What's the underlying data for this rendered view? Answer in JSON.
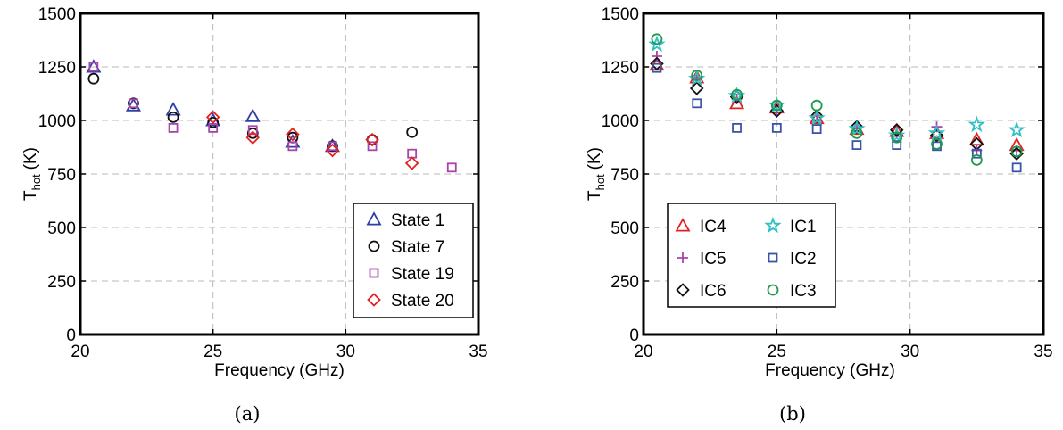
{
  "chart_data": [
    {
      "type": "scatter",
      "caption": "(a)",
      "xlabel": "Frequency (GHz)",
      "ylabel": "T",
      "ylabel_sub": "hot",
      "ylabel_unit": "(K)",
      "xlim": [
        20,
        35
      ],
      "ylim": [
        0,
        1500
      ],
      "xticks": [
        "20",
        "25",
        "30",
        "35"
      ],
      "yticks": [
        "0",
        "250",
        "500",
        "750",
        "1000",
        "1250",
        "1500"
      ],
      "grid": true,
      "legend_position": "lower-right",
      "series": [
        {
          "name": "State 1",
          "marker": "triangle",
          "color": "#2e3ea8",
          "x": [
            20.5,
            22,
            23.5,
            25,
            26.5,
            28,
            29.5
          ],
          "y": [
            1250,
            1070,
            1050,
            1000,
            1020,
            900,
            880
          ]
        },
        {
          "name": "State 7",
          "marker": "circle",
          "color": "#111111",
          "x": [
            20.5,
            22,
            23.5,
            25,
            26.5,
            28,
            29.5,
            31,
            32.5
          ],
          "y": [
            1195,
            1080,
            1015,
            990,
            940,
            920,
            880,
            910,
            945
          ]
        },
        {
          "name": "State 19",
          "marker": "square",
          "color": "#a845a8",
          "x": [
            20.5,
            22,
            23.5,
            25,
            26.5,
            28,
            29.5,
            31,
            32.5,
            34
          ],
          "y": [
            1250,
            1080,
            965,
            965,
            955,
            880,
            880,
            880,
            845,
            780
          ]
        },
        {
          "name": "State 20",
          "marker": "diamond",
          "color": "#e32020",
          "x": [
            25,
            26.5,
            28,
            29.5,
            31,
            32.5
          ],
          "y": [
            1015,
            920,
            935,
            860,
            910,
            800
          ]
        }
      ]
    },
    {
      "type": "scatter",
      "caption": "(b)",
      "xlabel": "Frequency (GHz)",
      "ylabel": "T",
      "ylabel_sub": "hot",
      "ylabel_unit": "(K)",
      "xlim": [
        20,
        35
      ],
      "ylim": [
        0,
        1500
      ],
      "xticks": [
        "20",
        "25",
        "30",
        "35"
      ],
      "yticks": [
        "0",
        "250",
        "500",
        "750",
        "1000",
        "1250",
        "1500"
      ],
      "grid": true,
      "legend_position": "lower-left",
      "series": [
        {
          "name": "IC4",
          "marker": "triangle",
          "color": "#e32020",
          "x": [
            20.5,
            22,
            23.5,
            25,
            26.5,
            28,
            29.5,
            31,
            32.5,
            34
          ],
          "y": [
            1260,
            1200,
            1080,
            1060,
            1010,
            960,
            950,
            940,
            910,
            885
          ]
        },
        {
          "name": "IC5",
          "marker": "plus",
          "color": "#a845a8",
          "x": [
            20.5,
            22,
            23.5,
            25,
            26.5,
            28,
            29.5,
            31,
            32.5,
            34
          ],
          "y": [
            1300,
            1200,
            1100,
            1050,
            1020,
            970,
            940,
            970,
            860,
            860
          ]
        },
        {
          "name": "IC6",
          "marker": "diamond",
          "color": "#111111",
          "x": [
            20.5,
            22,
            23.5,
            25,
            26.5,
            28,
            29.5,
            31,
            32.5,
            34
          ],
          "y": [
            1265,
            1150,
            1110,
            1045,
            1020,
            970,
            955,
            930,
            890,
            845
          ]
        },
        {
          "name": "IC1",
          "marker": "star",
          "color": "#2fbfc4",
          "x": [
            20.5,
            22,
            23.5,
            25,
            26.5,
            28,
            29.5,
            31,
            32.5,
            34
          ],
          "y": [
            1355,
            1195,
            1115,
            1070,
            1010,
            960,
            930,
            940,
            980,
            955
          ]
        },
        {
          "name": "IC2",
          "marker": "square",
          "color": "#3a55a8",
          "x": [
            20.5,
            22,
            23.5,
            25,
            26.5,
            28,
            29.5,
            31,
            32.5,
            34
          ],
          "y": [
            1245,
            1080,
            965,
            965,
            960,
            885,
            885,
            880,
            845,
            780
          ]
        },
        {
          "name": "IC3",
          "marker": "circle",
          "color": "#1f9a4e",
          "x": [
            20.5,
            22,
            23.5,
            25,
            26.5,
            28,
            29.5,
            31,
            32.5,
            34
          ],
          "y": [
            1380,
            1210,
            1120,
            1070,
            1070,
            940,
            920,
            890,
            815,
            855
          ]
        }
      ]
    }
  ]
}
